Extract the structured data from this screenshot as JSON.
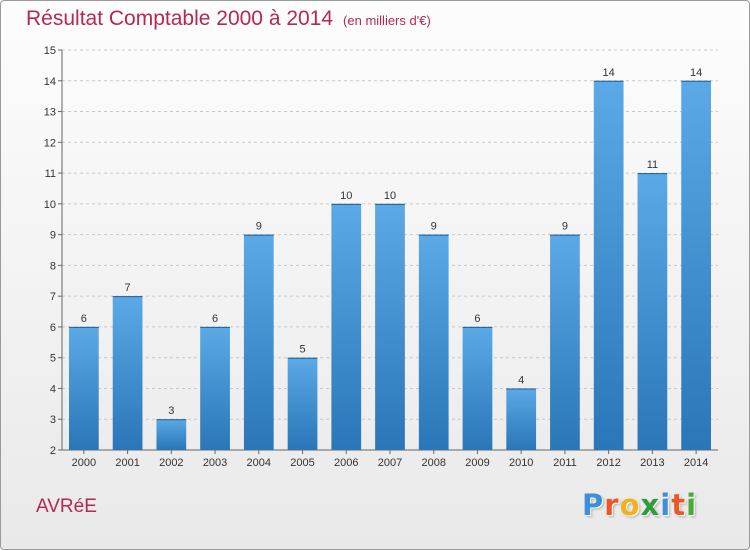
{
  "chart_data": {
    "type": "bar",
    "title": "Résultat Comptable 2000 à 2014",
    "unit_label": "(en milliers d'€)",
    "categories": [
      "2000",
      "2001",
      "2002",
      "2003",
      "2004",
      "2005",
      "2006",
      "2007",
      "2008",
      "2009",
      "2010",
      "2011",
      "2012",
      "2013",
      "2014"
    ],
    "values": [
      6,
      7,
      3,
      6,
      9,
      5,
      10,
      10,
      9,
      6,
      4,
      9,
      14,
      11,
      14
    ],
    "ylim": [
      2,
      15
    ],
    "yticks": [
      2,
      3,
      4,
      5,
      6,
      7,
      8,
      9,
      10,
      11,
      12,
      13,
      14,
      15
    ],
    "xlabel": "",
    "ylabel": "",
    "grid": true,
    "bar_color": "#3a8fd2"
  },
  "footer": {
    "commune": "AVRéE",
    "logo_letters": [
      "P",
      "r",
      "o",
      "x",
      "i",
      "t",
      "i"
    ],
    "logo_colors": [
      "#3d8fd6",
      "#e8592a",
      "#f2b21d",
      "#2e9c3a",
      "#3d8fd6",
      "#e8592a",
      "#4aa83c"
    ]
  }
}
